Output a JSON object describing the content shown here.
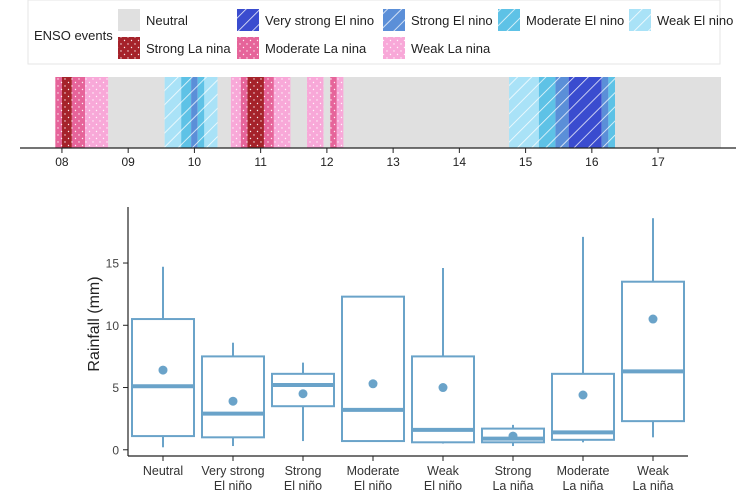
{
  "legend": {
    "title": "ENSO events",
    "items": [
      {
        "label": "Neutral",
        "key": "neutral"
      },
      {
        "label": "Very strong El nino",
        "key": "vs_el"
      },
      {
        "label": "Strong El nino",
        "key": "s_el"
      },
      {
        "label": "Moderate El nino",
        "key": "m_el"
      },
      {
        "label": "Weak El nino",
        "key": "w_el"
      },
      {
        "label": "Strong La nina",
        "key": "s_la"
      },
      {
        "label": "Moderate La nina",
        "key": "m_la"
      },
      {
        "label": "Weak La nina",
        "key": "w_la"
      }
    ]
  },
  "colors": {
    "neutral": "#e0e0e0",
    "vs_el": "#3a4ccf",
    "s_el": "#5b8fd8",
    "m_el": "#5ec2e6",
    "w_el": "#a9e2f7",
    "s_la": "#a5222a",
    "m_la": "#e6649a",
    "w_la": "#f8a8d8",
    "box": "#6aa3c9"
  },
  "chart_data": [
    {
      "type": "timeline",
      "x_ticks": [
        "08",
        "09",
        "10",
        "11",
        "12",
        "13",
        "14",
        "15",
        "16",
        "17"
      ],
      "xlim": [
        2007.85,
        2017.95
      ],
      "segments": [
        {
          "start": 2007.9,
          "end": 2008.0,
          "cat": "m_la"
        },
        {
          "start": 2008.0,
          "end": 2008.15,
          "cat": "s_la"
        },
        {
          "start": 2008.15,
          "end": 2008.35,
          "cat": "m_la"
        },
        {
          "start": 2008.35,
          "end": 2008.7,
          "cat": "w_la"
        },
        {
          "start": 2008.7,
          "end": 2009.55,
          "cat": "neutral"
        },
        {
          "start": 2009.55,
          "end": 2009.8,
          "cat": "w_el"
        },
        {
          "start": 2009.8,
          "end": 2009.95,
          "cat": "m_el"
        },
        {
          "start": 2009.95,
          "end": 2010.05,
          "cat": "s_el"
        },
        {
          "start": 2010.05,
          "end": 2010.15,
          "cat": "m_el"
        },
        {
          "start": 2010.15,
          "end": 2010.35,
          "cat": "w_el"
        },
        {
          "start": 2010.35,
          "end": 2010.55,
          "cat": "neutral"
        },
        {
          "start": 2010.55,
          "end": 2010.7,
          "cat": "w_la"
        },
        {
          "start": 2010.7,
          "end": 2010.8,
          "cat": "m_la"
        },
        {
          "start": 2010.8,
          "end": 2011.05,
          "cat": "s_la"
        },
        {
          "start": 2011.05,
          "end": 2011.2,
          "cat": "m_la"
        },
        {
          "start": 2011.2,
          "end": 2011.45,
          "cat": "w_la"
        },
        {
          "start": 2011.45,
          "end": 2011.7,
          "cat": "neutral"
        },
        {
          "start": 2011.7,
          "end": 2011.95,
          "cat": "w_la"
        },
        {
          "start": 2011.95,
          "end": 2012.05,
          "cat": "neutral"
        },
        {
          "start": 2012.05,
          "end": 2012.15,
          "cat": "m_la"
        },
        {
          "start": 2012.15,
          "end": 2012.25,
          "cat": "w_la"
        },
        {
          "start": 2012.25,
          "end": 2014.75,
          "cat": "neutral"
        },
        {
          "start": 2014.75,
          "end": 2015.2,
          "cat": "w_el"
        },
        {
          "start": 2015.2,
          "end": 2015.45,
          "cat": "m_el"
        },
        {
          "start": 2015.45,
          "end": 2015.65,
          "cat": "s_el"
        },
        {
          "start": 2015.65,
          "end": 2016.15,
          "cat": "vs_el"
        },
        {
          "start": 2016.15,
          "end": 2016.25,
          "cat": "s_el"
        },
        {
          "start": 2016.25,
          "end": 2016.35,
          "cat": "m_el"
        },
        {
          "start": 2016.35,
          "end": 2017.95,
          "cat": "neutral"
        }
      ]
    },
    {
      "type": "box",
      "ylabel": "Rainfall (mm)",
      "ylim": [
        -0.5,
        19.5
      ],
      "y_ticks": [
        0,
        5,
        10,
        15
      ],
      "categories": [
        {
          "l1": "Neutral",
          "l2": ""
        },
        {
          "l1": "Very strong",
          "l2": "El niño"
        },
        {
          "l1": "Strong",
          "l2": "El niño"
        },
        {
          "l1": "Moderate",
          "l2": "El niño"
        },
        {
          "l1": "Weak",
          "l2": "El niño"
        },
        {
          "l1": "Strong",
          "l2": "La niña"
        },
        {
          "l1": "Moderate",
          "l2": "La niña"
        },
        {
          "l1": "Weak",
          "l2": "La niña"
        }
      ],
      "boxes": [
        {
          "min": 0.2,
          "q1": 1.1,
          "median": 5.1,
          "q3": 10.5,
          "max": 14.7,
          "mean": 6.4
        },
        {
          "min": 0.3,
          "q1": 1.0,
          "median": 2.9,
          "q3": 7.5,
          "max": 8.6,
          "mean": 3.9
        },
        {
          "min": 0.7,
          "q1": 3.5,
          "median": 5.2,
          "q3": 6.1,
          "max": 7.0,
          "mean": 4.5
        },
        {
          "min": 0.7,
          "q1": 0.7,
          "median": 3.2,
          "q3": 12.3,
          "max": 12.3,
          "mean": 5.3
        },
        {
          "min": 0.5,
          "q1": 0.6,
          "median": 1.6,
          "q3": 7.5,
          "max": 14.6,
          "mean": 5.0
        },
        {
          "min": 0.3,
          "q1": 0.6,
          "median": 0.9,
          "q3": 1.7,
          "max": 2.0,
          "mean": 1.1
        },
        {
          "min": 0.6,
          "q1": 0.8,
          "median": 1.4,
          "q3": 6.1,
          "max": 17.1,
          "mean": 4.4
        },
        {
          "min": 1.0,
          "q1": 2.3,
          "median": 6.3,
          "q3": 13.5,
          "max": 18.6,
          "mean": 10.5
        }
      ]
    }
  ]
}
